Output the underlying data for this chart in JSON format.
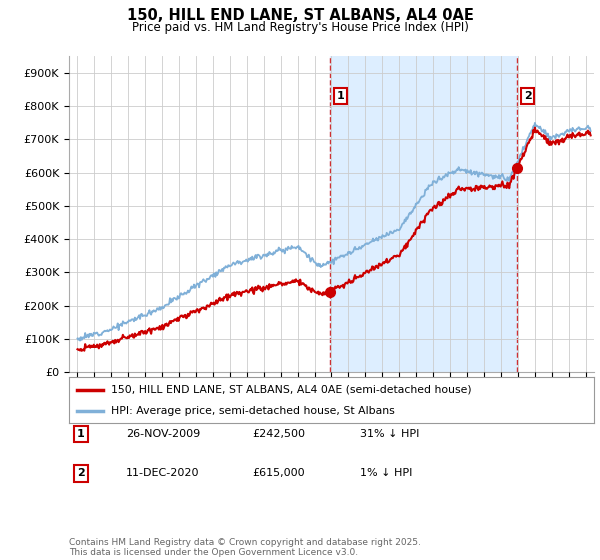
{
  "title": "150, HILL END LANE, ST ALBANS, AL4 0AE",
  "subtitle": "Price paid vs. HM Land Registry's House Price Index (HPI)",
  "ylabel_ticks": [
    "£0",
    "£100K",
    "£200K",
    "£300K",
    "£400K",
    "£500K",
    "£600K",
    "£700K",
    "£800K",
    "£900K"
  ],
  "ytick_values": [
    0,
    100000,
    200000,
    300000,
    400000,
    500000,
    600000,
    700000,
    800000,
    900000
  ],
  "ylim": [
    0,
    950000
  ],
  "xlim_start": 1994.5,
  "xlim_end": 2025.5,
  "sale1_date": 2009.9,
  "sale1_price": 242500,
  "sale2_date": 2020.95,
  "sale2_price": 615000,
  "line_color_price": "#cc0000",
  "line_color_hpi": "#80b0d8",
  "shade_color": "#ddeeff",
  "legend_label_price": "150, HILL END LANE, ST ALBANS, AL4 0AE (semi-detached house)",
  "legend_label_hpi": "HPI: Average price, semi-detached house, St Albans",
  "footer": "Contains HM Land Registry data © Crown copyright and database right 2025.\nThis data is licensed under the Open Government Licence v3.0.",
  "background_color": "#ffffff",
  "grid_color": "#cccccc",
  "sale1_info_date": "26-NOV-2009",
  "sale1_info_price": "£242,500",
  "sale1_info_hpi": "31% ↓ HPI",
  "sale2_info_date": "11-DEC-2020",
  "sale2_info_price": "£615,000",
  "sale2_info_hpi": "1% ↓ HPI"
}
